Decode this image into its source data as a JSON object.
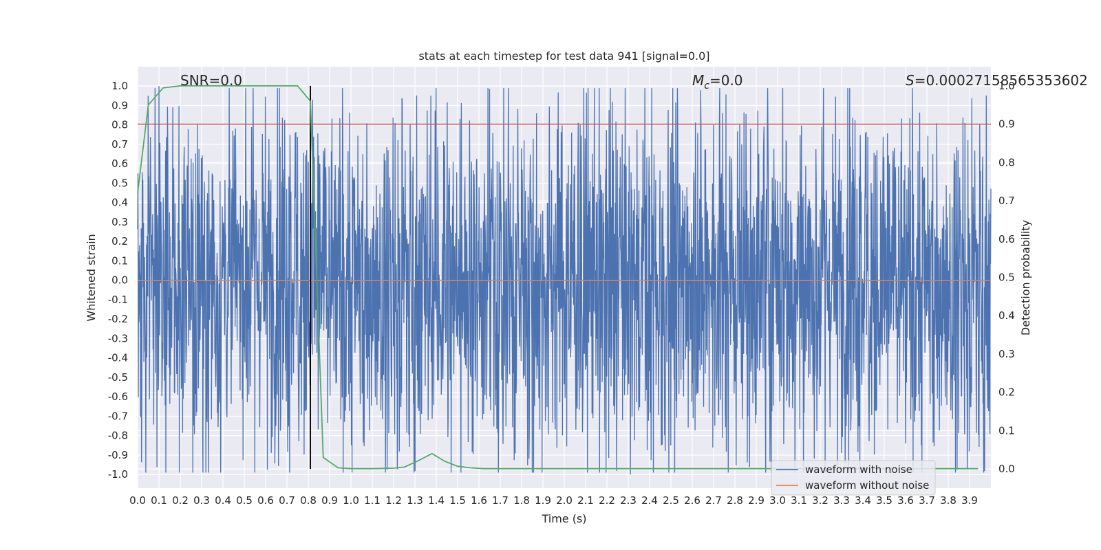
{
  "chart_data": {
    "type": "line",
    "title": "stats at each timestep for test data 941 [signal=0.0]",
    "xlabel": "Time (s)",
    "ylabel": "Whitened strain",
    "y2label": "Detection probability",
    "xlim": [
      0.0,
      4.0
    ],
    "ylim": [
      -1.07,
      1.1
    ],
    "y2lim": [
      -0.05,
      1.05
    ],
    "grid": true,
    "legend_position": "lower-right",
    "x_ticks": [
      "0.0",
      "0.1",
      "0.2",
      "0.3",
      "0.4",
      "0.5",
      "0.6",
      "0.7",
      "0.8",
      "0.9",
      "1.0",
      "1.1",
      "1.2",
      "1.3",
      "1.4",
      "1.5",
      "1.6",
      "1.7",
      "1.8",
      "1.9",
      "2.0",
      "2.1",
      "2.2",
      "2.3",
      "2.4",
      "2.5",
      "2.6",
      "2.7",
      "2.8",
      "2.9",
      "3.0",
      "3.1",
      "3.2",
      "3.3",
      "3.4",
      "3.5",
      "3.6",
      "3.7",
      "3.8",
      "3.9"
    ],
    "y_ticks": [
      "1.0",
      "0.9",
      "0.8",
      "0.7",
      "0.6",
      "0.5",
      "0.4",
      "0.3",
      "0.2",
      "0.1",
      "0.0",
      "-0.1",
      "-0.2",
      "-0.3",
      "-0.4",
      "-0.5",
      "-0.6",
      "-0.7",
      "-0.8",
      "-0.9",
      "-1.0"
    ],
    "y2_ticks": [
      "1.0",
      "0.9",
      "0.8",
      "0.7",
      "0.6",
      "0.5",
      "0.4",
      "0.3",
      "0.2",
      "0.1",
      "0.0"
    ],
    "annotations": {
      "snr": "SNR=0.0",
      "mc_symbol": "M",
      "mc_sub": "c",
      "mc_value": "=0.0",
      "s_symbol": "S",
      "s_value": "=0.00027158565353602"
    },
    "threshold": 0.9,
    "threshold_color": "#c44e52",
    "marker_time": 0.81,
    "series": [
      {
        "name": "waveform with noise",
        "color": "#4c72b0",
        "style": "noise",
        "amplitude_envelope": 0.45,
        "peak_points": [
          {
            "x": 0.05,
            "y": 0.95
          },
          {
            "x": 0.1,
            "y": 1.0
          },
          {
            "x": 0.8,
            "y": 0.61
          },
          {
            "x": 0.82,
            "y": 0.93
          },
          {
            "x": 1.24,
            "y": 0.93
          },
          {
            "x": 1.87,
            "y": 0.86
          },
          {
            "x": 2.7,
            "y": 0.8
          },
          {
            "x": 3.6,
            "y": 0.8
          },
          {
            "x": 2.31,
            "y": -1.0
          },
          {
            "x": 2.5,
            "y": -0.85
          },
          {
            "x": 3.6,
            "y": -0.84
          },
          {
            "x": 1.77,
            "y": -0.89
          }
        ]
      },
      {
        "name": "waveform without noise",
        "color": "#dd8452",
        "style": "flat",
        "value": 0.0
      },
      {
        "name": "detection probability",
        "color": "#55a868",
        "axis": "right",
        "x": [
          0.0,
          0.05,
          0.12,
          0.2,
          0.3,
          0.4,
          0.5,
          0.6,
          0.7,
          0.75,
          0.81,
          0.87,
          0.94,
          1.0,
          1.1,
          1.2,
          1.25,
          1.31,
          1.38,
          1.44,
          1.5,
          1.56,
          1.62,
          1.7,
          1.8,
          2.0,
          2.5,
          3.0,
          3.5,
          3.94
        ],
        "y": [
          0.72,
          0.95,
          0.995,
          1.0,
          1.0,
          1.0,
          1.0,
          1.0,
          1.0,
          1.0,
          0.96,
          0.03,
          0.003,
          0.001,
          0.001,
          0.002,
          0.005,
          0.02,
          0.04,
          0.02,
          0.007,
          0.003,
          0.001,
          0.001,
          0.001,
          0.001,
          0.001,
          0.001,
          0.001,
          0.001
        ]
      }
    ]
  }
}
